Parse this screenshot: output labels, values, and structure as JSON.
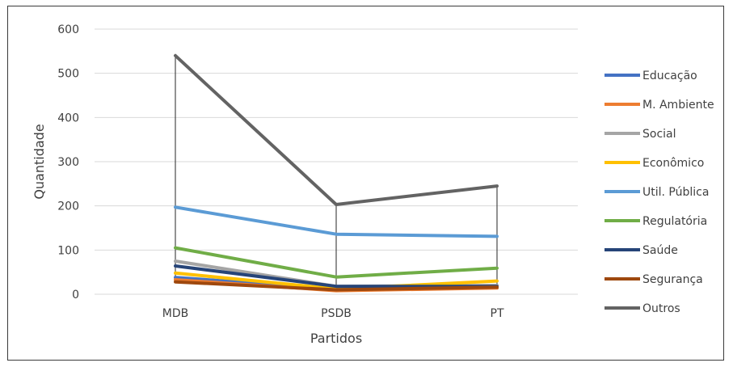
{
  "chart_data": {
    "type": "line",
    "categories": [
      "MDB",
      "PSDB",
      "PT"
    ],
    "xlabel": "Partidos",
    "ylabel": "Quantidade",
    "ylim": [
      0,
      600
    ],
    "yticks": [
      0,
      100,
      200,
      300,
      400,
      500,
      600
    ],
    "grid": true,
    "legend_position": "right",
    "series": [
      {
        "name": "Educação",
        "color": "#4472C4",
        "values": [
          38,
          12,
          18
        ]
      },
      {
        "name": "M. Ambiente",
        "color": "#ED7D31",
        "values": [
          33,
          8,
          14
        ]
      },
      {
        "name": "Social",
        "color": "#A5A5A5",
        "values": [
          75,
          18,
          20
        ]
      },
      {
        "name": "Econômico",
        "color": "#FFC000",
        "values": [
          48,
          12,
          30
        ]
      },
      {
        "name": "Util. Pública",
        "color": "#5B9BD5",
        "values": [
          197,
          136,
          131
        ]
      },
      {
        "name": "Regulatória",
        "color": "#70AD47",
        "values": [
          105,
          39,
          59
        ]
      },
      {
        "name": "Saúde",
        "color": "#264478",
        "values": [
          64,
          18,
          18
        ]
      },
      {
        "name": "Segurança",
        "color": "#9E480E",
        "values": [
          28,
          10,
          16
        ]
      },
      {
        "name": "Outros",
        "color": "#636363",
        "values": [
          540,
          203,
          245
        ]
      }
    ]
  }
}
